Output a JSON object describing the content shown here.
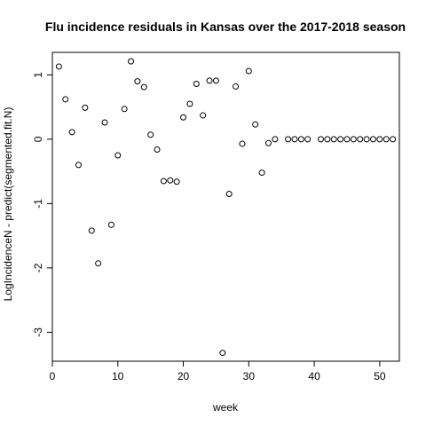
{
  "chart_data": {
    "type": "scatter",
    "title": "Flu incidence residuals in Kansas over the 2017-2018 season",
    "xlabel": "week",
    "ylabel": "LogIncidenceN - predict(segmented.fit.N)",
    "xlim": [
      0,
      53
    ],
    "ylim": [
      -3.45,
      1.35
    ],
    "x_ticks": [
      0,
      10,
      20,
      30,
      40,
      50
    ],
    "y_ticks": [
      -3,
      -2,
      -1,
      0,
      1
    ],
    "grid": false,
    "legend": "none",
    "marker": "open-circle",
    "x": [
      1,
      2,
      3,
      4,
      5,
      6,
      7,
      8,
      9,
      10,
      11,
      12,
      13,
      14,
      15,
      16,
      17,
      18,
      19,
      20,
      21,
      22,
      23,
      24,
      25,
      26,
      27,
      28,
      29,
      30,
      31,
      32,
      33,
      34,
      36,
      37,
      38,
      39,
      41,
      42,
      43,
      44,
      45,
      46,
      47,
      48,
      49,
      50,
      51,
      52
    ],
    "y": [
      1.13,
      0.62,
      0.11,
      -0.4,
      0.49,
      -1.42,
      -1.93,
      0.26,
      -1.33,
      -0.25,
      0.47,
      1.21,
      0.9,
      0.81,
      0.07,
      -0.16,
      -0.65,
      -0.64,
      -0.66,
      0.34,
      0.55,
      0.86,
      0.37,
      0.91,
      0.91,
      -3.32,
      -0.85,
      0.82,
      -0.07,
      1.06,
      0.23,
      -0.52,
      -0.06,
      0.0,
      0,
      0,
      0,
      0,
      0,
      0,
      0,
      0,
      0,
      0,
      0,
      0,
      0,
      0,
      0,
      0
    ]
  }
}
